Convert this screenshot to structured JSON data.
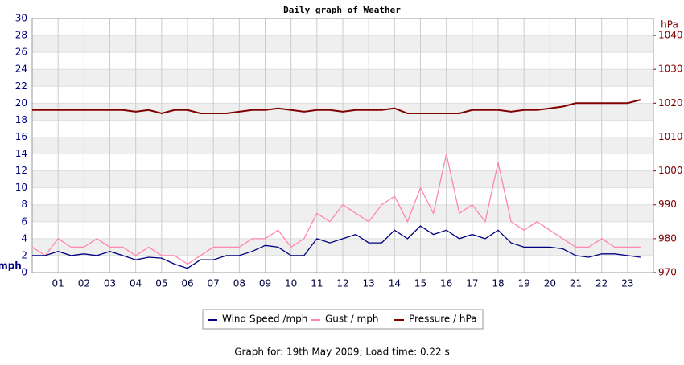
{
  "chart_data": {
    "type": "line",
    "title": "Daily graph of Weather",
    "y_label": "mph",
    "y2_label": "hPa",
    "footer": "Graph for: 19th May 2009; Load time: 0.22 s",
    "x": [
      0,
      0.5,
      1,
      1.5,
      2,
      2.5,
      3,
      3.5,
      4,
      4.5,
      5,
      5.5,
      6,
      6.5,
      7,
      7.5,
      8,
      8.5,
      9,
      9.5,
      10,
      10.5,
      11,
      11.5,
      12,
      12.5,
      13,
      13.5,
      14,
      14.5,
      15,
      15.5,
      16,
      16.5,
      17,
      17.5,
      18,
      18.5,
      19,
      19.5,
      20,
      20.5,
      21,
      21.5,
      22,
      22.5,
      23,
      23.5
    ],
    "xlim": [
      0,
      24
    ],
    "xticks": [
      {
        "value": 1,
        "label": "01"
      },
      {
        "value": 2,
        "label": "02"
      },
      {
        "value": 3,
        "label": "03"
      },
      {
        "value": 4,
        "label": "04"
      },
      {
        "value": 5,
        "label": "05"
      },
      {
        "value": 6,
        "label": "06"
      },
      {
        "value": 7,
        "label": "07"
      },
      {
        "value": 8,
        "label": "08"
      },
      {
        "value": 9,
        "label": "09"
      },
      10,
      11,
      12,
      13,
      14,
      15,
      16,
      17,
      18,
      19,
      20,
      21,
      22,
      23
    ],
    "ylim": [
      0,
      30
    ],
    "yticks": [
      0,
      2,
      4,
      6,
      8,
      10,
      12,
      14,
      16,
      18,
      20,
      22,
      24,
      26,
      28,
      30
    ],
    "y2lim": [
      970,
      1045
    ],
    "y2ticks": [
      970,
      980,
      990,
      1000,
      1010,
      1020,
      1030,
      1040
    ],
    "grid": true,
    "series": [
      {
        "name": "Wind Speed /mph",
        "color": "#000080",
        "values": [
          2,
          2,
          2.5,
          2,
          2.2,
          2,
          2.5,
          2,
          1.5,
          1.8,
          1.7,
          1,
          0.5,
          1.5,
          1.5,
          2,
          2,
          2.5,
          3.2,
          3,
          2,
          2,
          4,
          3.5,
          4,
          4.5,
          3.5,
          3.5,
          5,
          4,
          5.5,
          4.5,
          5,
          4,
          4.5,
          4,
          5,
          3.5,
          3,
          3,
          3,
          2.8,
          2,
          1.8,
          2.2,
          2.2,
          2,
          1.8
        ]
      },
      {
        "name": "Gust / mph",
        "color": "#ff88aa",
        "values": [
          3,
          2,
          4,
          3,
          3,
          4,
          3,
          3,
          2,
          3,
          2,
          2,
          1,
          2,
          3,
          3,
          3,
          4,
          4,
          5,
          3,
          4,
          7,
          6,
          8,
          7,
          6,
          8,
          9,
          6,
          10,
          7,
          14,
          7,
          8,
          6,
          13,
          6,
          5,
          6,
          5,
          4,
          3,
          3,
          4,
          3,
          3,
          3
        ]
      },
      {
        "name": "Pressure / hPa",
        "color": "#800000",
        "axis": "y2",
        "values": [
          1018,
          1018,
          1018,
          1018,
          1018,
          1018,
          1018,
          1018,
          1017.5,
          1018,
          1017,
          1018,
          1018,
          1017,
          1017,
          1017,
          1017.5,
          1018,
          1018,
          1018.5,
          1018,
          1017.5,
          1018,
          1018,
          1017.5,
          1018,
          1018,
          1018,
          1018.5,
          1017,
          1017,
          1017,
          1017,
          1017,
          1018,
          1018,
          1018,
          1017.5,
          1018,
          1018,
          1018.5,
          1019,
          1020,
          1020,
          1020,
          1020,
          1020,
          1021
        ]
      }
    ]
  }
}
